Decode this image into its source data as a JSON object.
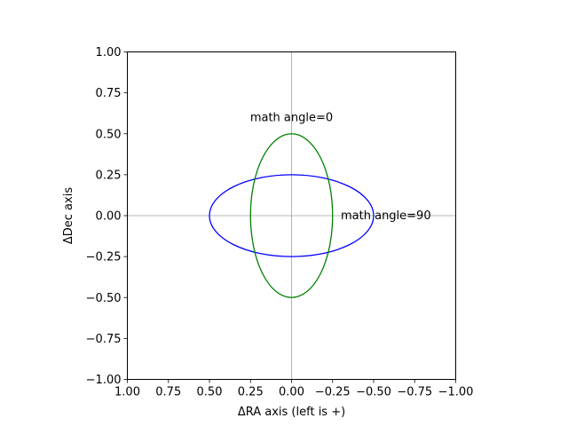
{
  "chart_data": {
    "type": "line",
    "title": "",
    "xlabel": "ΔRA axis (left is +)",
    "ylabel": "ΔDec axis",
    "xlim": [
      1.0,
      -1.0
    ],
    "ylim": [
      -1.0,
      1.0
    ],
    "x_inverted": true,
    "xticks": [
      1.0,
      0.75,
      0.5,
      0.25,
      0.0,
      -0.25,
      -0.5,
      -0.75,
      -1.0
    ],
    "xtick_labels": [
      "1.00",
      "0.75",
      "0.50",
      "0.25",
      "0.00",
      "−0.25",
      "−0.50",
      "−0.75",
      "−1.00"
    ],
    "yticks": [
      -1.0,
      -0.75,
      -0.5,
      -0.25,
      0.0,
      0.25,
      0.5,
      0.75,
      1.0
    ],
    "ytick_labels": [
      "−1.00",
      "−0.75",
      "−0.50",
      "−0.25",
      "0.00",
      "0.25",
      "0.50",
      "0.75",
      "1.00"
    ],
    "grid": false,
    "reference_lines": {
      "x": 0.0,
      "y": 0.0,
      "color": "#a0a0a0"
    },
    "series": [
      {
        "shape": "ellipse",
        "center": [
          0.0,
          0.0
        ],
        "semi_x": 0.5,
        "semi_y": 0.25,
        "color": "#0000ff"
      },
      {
        "shape": "ellipse",
        "center": [
          0.0,
          0.0
        ],
        "semi_x": 0.25,
        "semi_y": 0.5,
        "color": "#008000"
      }
    ],
    "annotations": [
      {
        "text": "math angle=0",
        "x": 0.0,
        "y": 0.6,
        "anchor": "middle"
      },
      {
        "text": "math angle=90",
        "x": -0.3,
        "y": 0.0,
        "anchor": "start"
      }
    ]
  }
}
